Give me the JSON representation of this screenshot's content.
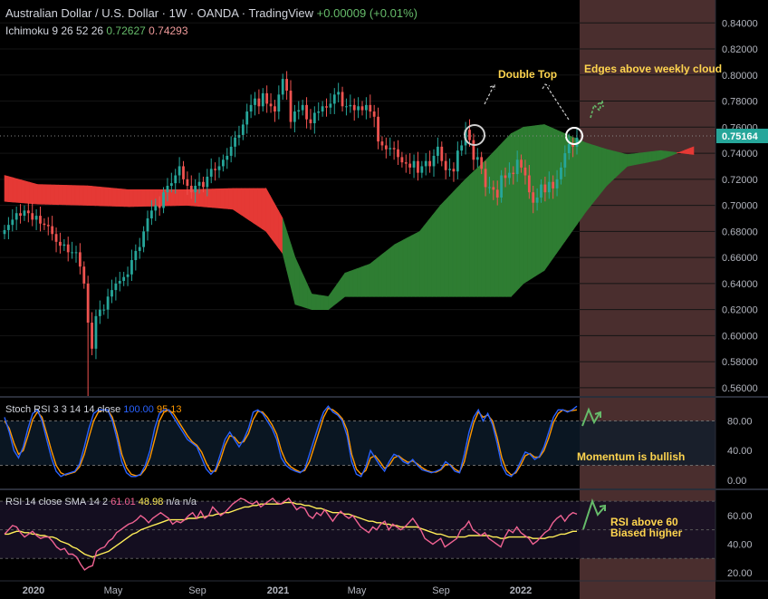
{
  "header": {
    "symbol_line": "Australian Dollar / U.S. Dollar · 1W · OANDA · TradingView",
    "change": "+0.00009 (+0.01%)",
    "ichimoku_label": "Ichimoku 9 26 52 26",
    "ichimoku_val1": "0.72627",
    "ichimoku_val2": "0.74293"
  },
  "stoch": {
    "label": "Stoch RSI 3 3 14 14 close",
    "k": "100.00",
    "d": "95.13"
  },
  "rsi": {
    "label": "RSI 14 close SMA 14 2",
    "rsi": "61.01",
    "sma": "48.98",
    "na": "n/a n/a"
  },
  "annotations": {
    "double_top": "Double Top",
    "edges": "Edges above weekly cloud",
    "momentum": "Momentum is bullish",
    "rsi_line1": "RSI above 60",
    "rsi_line2": "Biased higher"
  },
  "price_tag": "0.75164",
  "colors": {
    "bull_candle": "#26a69a",
    "bear_candle": "#ef5350",
    "cloud_green": "#2e7d32",
    "cloud_red": "#e53935",
    "stoch_k": "#2962ff",
    "stoch_d": "#ff9800",
    "rsi_line": "#f06292",
    "rsi_sma": "#ffee58",
    "highlight": "#5d3a3a"
  },
  "chart_data": [
    {
      "type": "candlestick",
      "title": "Australian Dollar / U.S. Dollar · 1W · OANDA",
      "x_ticks": [
        "2020",
        "May",
        "Sep",
        "2021",
        "May",
        "Sep",
        "2022"
      ],
      "y_ticks": [
        "0.84000",
        "0.82000",
        "0.80000",
        "0.78000",
        "0.76000",
        "0.74000",
        "0.72000",
        "0.70000",
        "0.68000",
        "0.66000",
        "0.64000",
        "0.62000",
        "0.60000",
        "0.58000",
        "0.56000"
      ],
      "ylim": [
        0.553,
        0.852
      ],
      "last_price": 0.75164,
      "close": [
        0.681,
        0.685,
        0.689,
        0.694,
        0.692,
        0.696,
        0.694,
        0.689,
        0.692,
        0.686,
        0.685,
        0.684,
        0.678,
        0.672,
        0.669,
        0.67,
        0.664,
        0.664,
        0.664,
        0.653,
        0.64,
        0.61,
        0.59,
        0.615,
        0.62,
        0.62,
        0.63,
        0.635,
        0.64,
        0.642,
        0.645,
        0.647,
        0.658,
        0.665,
        0.668,
        0.68,
        0.69,
        0.696,
        0.7,
        0.698,
        0.71,
        0.715,
        0.717,
        0.723,
        0.73,
        0.72,
        0.715,
        0.71,
        0.715,
        0.718,
        0.714,
        0.722,
        0.728,
        0.727,
        0.73,
        0.735,
        0.738,
        0.745,
        0.752,
        0.754,
        0.762,
        0.772,
        0.777,
        0.782,
        0.776,
        0.786,
        0.778,
        0.776,
        0.772,
        0.785,
        0.797,
        0.788,
        0.764,
        0.772,
        0.773,
        0.777,
        0.766,
        0.763,
        0.771,
        0.772,
        0.776,
        0.775,
        0.778,
        0.785,
        0.787,
        0.776,
        0.776,
        0.777,
        0.773,
        0.776,
        0.773,
        0.777,
        0.772,
        0.768,
        0.749,
        0.746,
        0.743,
        0.744,
        0.743,
        0.737,
        0.733,
        0.732,
        0.729,
        0.734,
        0.725,
        0.73,
        0.734,
        0.73,
        0.738,
        0.745,
        0.734,
        0.727,
        0.728,
        0.726,
        0.742,
        0.746,
        0.758,
        0.75,
        0.735,
        0.737,
        0.728,
        0.714,
        0.714,
        0.712,
        0.706,
        0.723,
        0.721,
        0.725,
        0.724,
        0.735,
        0.729,
        0.723,
        0.71,
        0.702,
        0.706,
        0.716,
        0.71,
        0.718,
        0.713,
        0.72,
        0.729,
        0.74,
        0.747,
        0.745,
        0.752
      ],
      "ichimoku_cloud": {
        "x_index": [
          0,
          8,
          20,
          30,
          44,
          55,
          63,
          67,
          70,
          74,
          78,
          82,
          88,
          94,
          100,
          105,
          111,
          116,
          122,
          125,
          130,
          140,
          145,
          150,
          158,
          166
        ],
        "span_a": [
          0.723,
          0.716,
          0.715,
          0.712,
          0.712,
          0.713,
          0.713,
          0.69,
          0.66,
          0.632,
          0.63,
          0.648,
          0.655,
          0.67,
          0.68,
          0.7,
          0.72,
          0.735,
          0.755,
          0.76,
          0.762,
          0.748,
          0.743,
          0.739,
          0.742,
          0.739
        ],
        "span_b": [
          0.703,
          0.701,
          0.7,
          0.699,
          0.7,
          0.697,
          0.68,
          0.663,
          0.624,
          0.62,
          0.62,
          0.63,
          0.63,
          0.63,
          0.63,
          0.63,
          0.63,
          0.63,
          0.63,
          0.64,
          0.65,
          0.695,
          0.715,
          0.73,
          0.735,
          0.745
        ]
      }
    },
    {
      "type": "line",
      "title": "Stoch RSI 3 3 14 14 close",
      "y_ticks": [
        "80.00",
        "40.00",
        "0.00"
      ],
      "ylim": [
        -10,
        110
      ],
      "series": [
        {
          "name": "K",
          "values": [
            85,
            65,
            40,
            30,
            45,
            70,
            90,
            95,
            80,
            55,
            30,
            12,
            5,
            8,
            10,
            12,
            22,
            45,
            70,
            90,
            95,
            95,
            95,
            80,
            55,
            25,
            10,
            5,
            5,
            8,
            20,
            40,
            70,
            90,
            95,
            95,
            85,
            75,
            65,
            55,
            50,
            45,
            30,
            15,
            8,
            15,
            35,
            55,
            65,
            55,
            45,
            55,
            70,
            92,
            95,
            90,
            80,
            70,
            55,
            30,
            20,
            15,
            12,
            10,
            15,
            35,
            55,
            75,
            92,
            100,
            92,
            88,
            80,
            60,
            25,
            8,
            5,
            18,
            40,
            30,
            20,
            12,
            25,
            35,
            32,
            25,
            22,
            28,
            20,
            14,
            12,
            10,
            12,
            15,
            25,
            20,
            12,
            10,
            35,
            65,
            85,
            95,
            80,
            90,
            75,
            50,
            20,
            8,
            5,
            12,
            25,
            38,
            35,
            28,
            32,
            45,
            65,
            85,
            95,
            95,
            92,
            95,
            100
          ]
        },
        {
          "name": "D",
          "values": [
            80,
            70,
            50,
            35,
            40,
            60,
            82,
            92,
            85,
            63,
            40,
            20,
            10,
            7,
            9,
            11,
            18,
            35,
            58,
            80,
            92,
            95,
            95,
            85,
            63,
            35,
            17,
            8,
            6,
            7,
            15,
            30,
            55,
            80,
            92,
            95,
            90,
            80,
            70,
            60,
            52,
            47,
            38,
            23,
            12,
            12,
            27,
            47,
            60,
            58,
            50,
            52,
            63,
            82,
            93,
            92,
            85,
            75,
            62,
            40,
            25,
            18,
            14,
            11,
            13,
            25,
            45,
            65,
            85,
            97,
            95,
            90,
            83,
            68,
            35,
            15,
            8,
            13,
            30,
            33,
            25,
            16,
            20,
            30,
            33,
            28,
            24,
            26,
            22,
            17,
            13,
            11,
            11,
            14,
            21,
            21,
            15,
            11,
            25,
            53,
            77,
            92,
            85,
            88,
            80,
            58,
            30,
            13,
            7,
            10,
            20,
            33,
            36,
            31,
            31,
            40,
            57,
            78,
            90,
            95,
            93,
            94,
            95
          ]
        }
      ]
    },
    {
      "type": "line",
      "title": "RSI 14 close SMA 14 2",
      "y_ticks": [
        "60.00",
        "40.00",
        "20.00"
      ],
      "ylim": [
        15,
        77
      ],
      "series": [
        {
          "name": "RSI",
          "values": [
            47,
            50,
            53,
            52,
            48,
            45,
            47,
            49,
            46,
            44,
            45,
            45,
            42,
            38,
            36,
            37,
            33,
            33,
            31,
            26,
            22,
            24,
            25,
            35,
            37,
            38,
            42,
            44,
            48,
            50,
            52,
            54,
            55,
            57,
            60,
            58,
            55,
            58,
            60,
            62,
            60,
            58,
            54,
            56,
            55,
            57,
            60,
            62,
            58,
            63,
            58,
            60,
            66,
            63,
            60,
            62,
            65,
            68,
            70,
            72,
            71,
            69,
            68,
            70,
            66,
            68,
            70,
            72,
            69,
            68,
            70,
            72,
            68,
            64,
            66,
            65,
            60,
            58,
            62,
            60,
            64,
            60,
            56,
            60,
            63,
            60,
            58,
            60,
            56,
            52,
            50,
            48,
            52,
            50,
            54,
            56,
            50,
            54,
            52,
            50,
            52,
            55,
            58,
            54,
            50,
            44,
            42,
            40,
            42,
            44,
            38,
            40,
            42,
            44,
            50,
            52,
            56,
            50,
            48,
            46,
            48,
            44,
            42,
            40,
            38,
            45,
            50,
            48,
            52,
            48,
            46,
            44,
            40,
            42,
            45,
            48,
            50,
            55,
            58,
            60,
            56,
            60,
            62,
            61
          ]
        },
        {
          "name": "SMA",
          "values": [
            47,
            47,
            48,
            49,
            49,
            48,
            48,
            47,
            47,
            46,
            46,
            45,
            45,
            44,
            42,
            41,
            40,
            38,
            37,
            35,
            33,
            32,
            31,
            32,
            33,
            34,
            35,
            37,
            39,
            41,
            43,
            45,
            47,
            48,
            50,
            51,
            52,
            53,
            54,
            55,
            56,
            57,
            57,
            57,
            57,
            57,
            58,
            58,
            58,
            59,
            59,
            60,
            60,
            61,
            61,
            62,
            62,
            63,
            64,
            65,
            66,
            66,
            67,
            67,
            68,
            68,
            68,
            68,
            68,
            68,
            69,
            69,
            69,
            68,
            68,
            67,
            67,
            66,
            65,
            65,
            64,
            63,
            62,
            62,
            62,
            61,
            61,
            60,
            59,
            58,
            57,
            56,
            56,
            55,
            55,
            54,
            54,
            53,
            53,
            52,
            52,
            52,
            52,
            52,
            51,
            50,
            49,
            48,
            47,
            47,
            46,
            45,
            45,
            45,
            45,
            45,
            46,
            46,
            46,
            46,
            46,
            46,
            45,
            45,
            44,
            44,
            45,
            45,
            45,
            45,
            45,
            45,
            44,
            44,
            44,
            44,
            45,
            45,
            46,
            47,
            47,
            48,
            49,
            49
          ]
        }
      ]
    }
  ],
  "time_axis": [
    "2020",
    "May",
    "Sep",
    "2021",
    "May",
    "Sep",
    "2022"
  ]
}
